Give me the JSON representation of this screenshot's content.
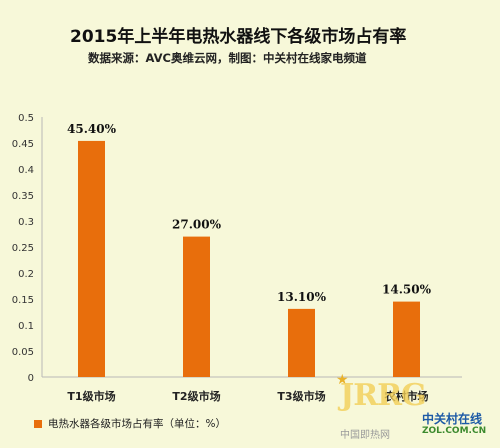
{
  "header": {
    "title": "2015年上半年电热水器线下各级市场占有率",
    "subtitle": "数据来源：AVC奥维云网，制图：中关村在线家电频道"
  },
  "chart_data": {
    "type": "bar",
    "categories": [
      "T1级市场",
      "T2级市场",
      "T3级市场",
      "农村市场"
    ],
    "series": [
      {
        "name": "电热水器各级市场占有率（单位：%）",
        "values": [
          0.454,
          0.27,
          0.131,
          0.145
        ],
        "data_labels": [
          "45.40%",
          "27.00%",
          "13.10%",
          "14.50%"
        ]
      }
    ],
    "ylim": [
      0,
      0.5
    ],
    "yticks": [
      "0",
      "0.05",
      "0.1",
      "0.15",
      "0.2",
      "0.25",
      "0.3",
      "0.35",
      "0.4",
      "0.45",
      "0.5"
    ],
    "grid": false,
    "legend_position": "bottom-left",
    "bar_color": "#e86e0c"
  },
  "watermark": {
    "logo": "JRRG",
    "cn_text": "中国即热网",
    "brand": "中关村在线",
    "url": "ZOL.COM.CN"
  }
}
